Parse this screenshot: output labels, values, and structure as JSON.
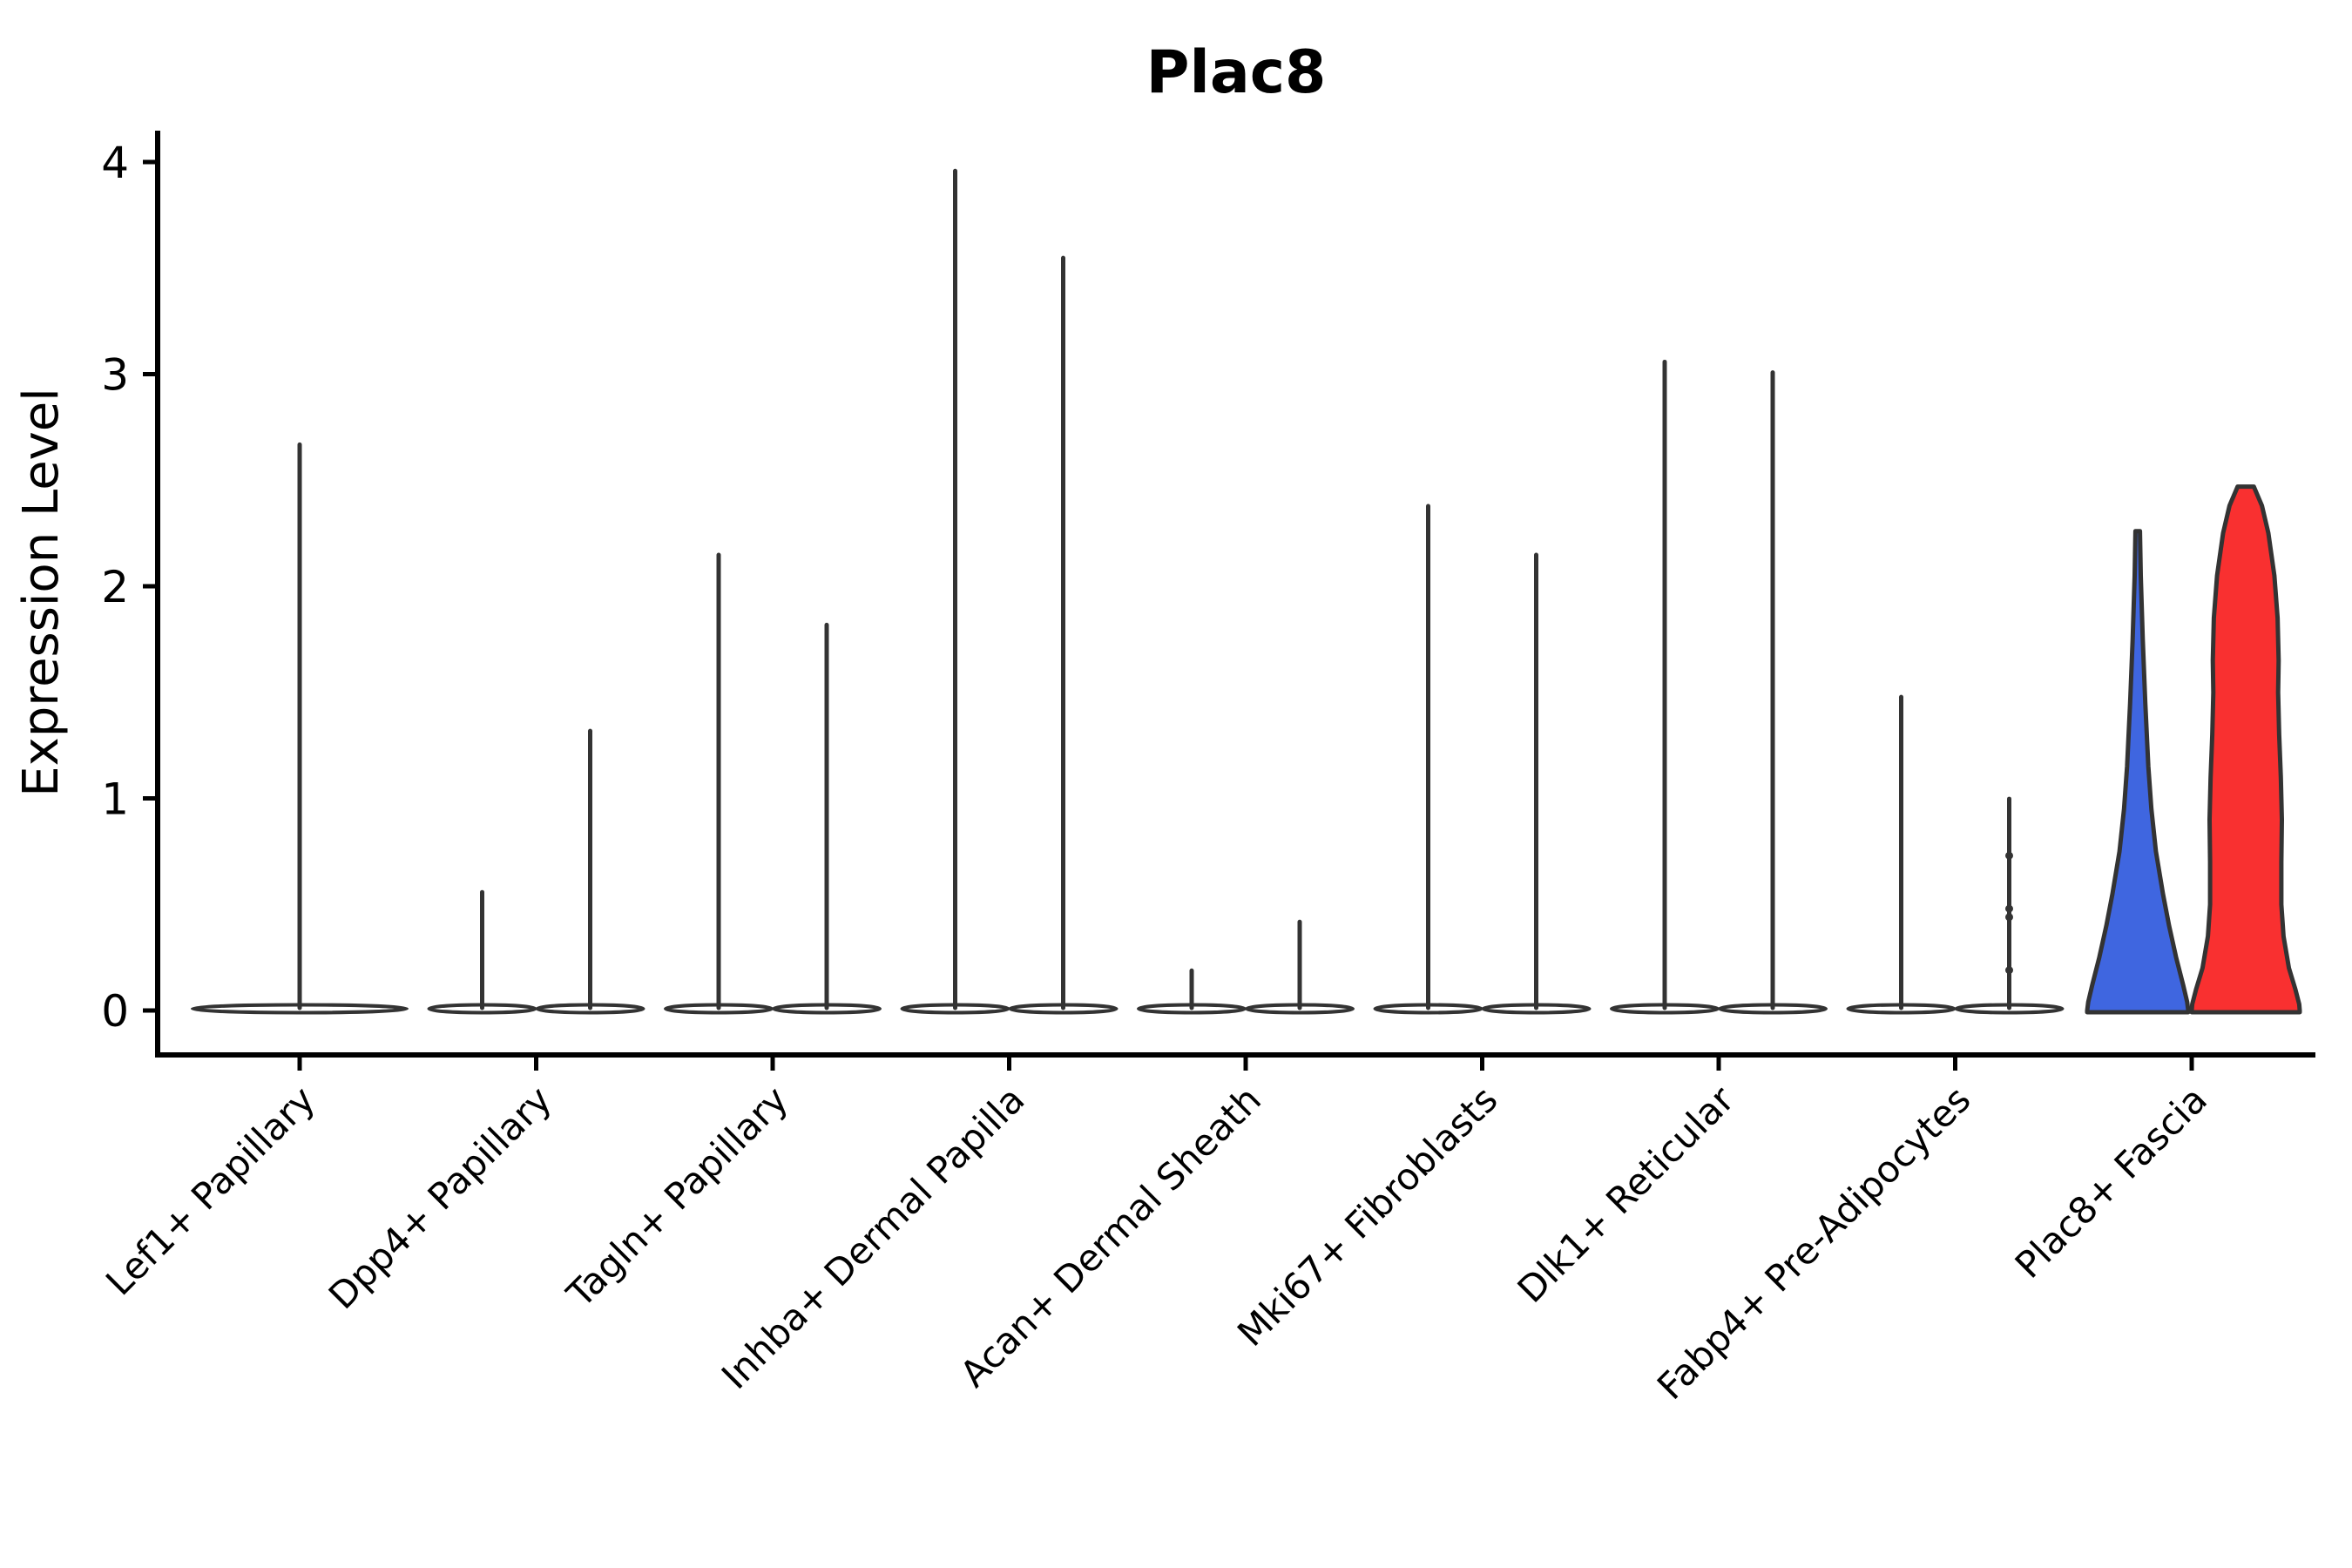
{
  "figure": {
    "title": "Plac8",
    "y_axis": {
      "label": "Expression Level",
      "tick_labels": [
        "0",
        "1",
        "2",
        "3",
        "4"
      ]
    },
    "colors": {
      "axis": "#000000",
      "outline": "#333333",
      "spike_fill": "#FFFFFF",
      "blue": "#3F66E0",
      "red": "#F93030",
      "background": "#FFFFFF"
    }
  },
  "chart_data": {
    "type": "violin",
    "title": "Plac8",
    "ylabel": "Expression Level",
    "ylim": [
      0,
      4.15
    ],
    "yticks": [
      0,
      1,
      2,
      3,
      4
    ],
    "grid": false,
    "legend_position": "none",
    "categories": [
      "Lef1+ Papillary",
      "Dpp4+ Papillary",
      "Tagln+ Papillary",
      "Inhba+ Dermal Papilla",
      "Acan+ Dermal Sheath",
      "Mki67+ Fibroblasts",
      "Dlk1+ Reticular",
      "Fabp4+ Pre-Adipocytes",
      "Plac8+ Fascia"
    ],
    "groups_per_category": 2,
    "violins": [
      {
        "category": "Lef1+ Papillary",
        "category_index": 0,
        "slot": "center",
        "style": "spike",
        "max_expression": 2.68,
        "fill": "#FFFFFF"
      },
      {
        "category": "Dpp4+ Papillary",
        "category_index": 1,
        "slot": "left",
        "style": "spike",
        "max_expression": 0.57,
        "fill": "#FFFFFF"
      },
      {
        "category": "Dpp4+ Papillary",
        "category_index": 1,
        "slot": "right",
        "style": "spike",
        "max_expression": 1.33,
        "fill": "#FFFFFF"
      },
      {
        "category": "Tagln+ Papillary",
        "category_index": 2,
        "slot": "left",
        "style": "spike",
        "max_expression": 2.16,
        "fill": "#FFFFFF"
      },
      {
        "category": "Tagln+ Papillary",
        "category_index": 2,
        "slot": "right",
        "style": "spike",
        "max_expression": 1.83,
        "fill": "#FFFFFF"
      },
      {
        "category": "Inhba+ Dermal Papilla",
        "category_index": 3,
        "slot": "left",
        "style": "spike",
        "max_expression": 3.97,
        "fill": "#FFFFFF"
      },
      {
        "category": "Inhba+ Dermal Papilla",
        "category_index": 3,
        "slot": "right",
        "style": "spike",
        "max_expression": 3.56,
        "fill": "#FFFFFF"
      },
      {
        "category": "Acan+ Dermal Sheath",
        "category_index": 4,
        "slot": "left",
        "style": "spike",
        "max_expression": 0.2,
        "fill": "#FFFFFF"
      },
      {
        "category": "Acan+ Dermal Sheath",
        "category_index": 4,
        "slot": "right",
        "style": "spike",
        "max_expression": 0.43,
        "fill": "#FFFFFF"
      },
      {
        "category": "Mki67+ Fibroblasts",
        "category_index": 5,
        "slot": "left",
        "style": "spike",
        "max_expression": 2.39,
        "fill": "#FFFFFF"
      },
      {
        "category": "Mki67+ Fibroblasts",
        "category_index": 5,
        "slot": "right",
        "style": "spike",
        "max_expression": 2.16,
        "fill": "#FFFFFF"
      },
      {
        "category": "Dlk1+ Reticular",
        "category_index": 6,
        "slot": "left",
        "style": "spike",
        "max_expression": 3.07,
        "fill": "#FFFFFF"
      },
      {
        "category": "Dlk1+ Reticular",
        "category_index": 6,
        "slot": "right",
        "style": "spike",
        "max_expression": 3.02,
        "fill": "#FFFFFF"
      },
      {
        "category": "Fabp4+ Pre-Adipocytes",
        "category_index": 7,
        "slot": "left",
        "style": "spike",
        "max_expression": 1.49,
        "fill": "#FFFFFF"
      },
      {
        "category": "Fabp4+ Pre-Adipocytes",
        "category_index": 7,
        "slot": "right",
        "style": "spike",
        "max_expression": 1.01,
        "fill": "#FFFFFF",
        "point_values": [
          0.73,
          0.48,
          0.44,
          0.19
        ]
      },
      {
        "category": "Plac8+ Fascia",
        "category_index": 8,
        "slot": "left",
        "style": "violin",
        "max_expression": 2.26,
        "fill": "#3F66E0",
        "profile": [
          [
            2.26,
            0.045
          ],
          [
            2.05,
            0.06
          ],
          [
            1.75,
            0.1
          ],
          [
            1.45,
            0.15
          ],
          [
            1.15,
            0.21
          ],
          [
            0.95,
            0.27
          ],
          [
            0.75,
            0.36
          ],
          [
            0.55,
            0.5
          ],
          [
            0.4,
            0.62
          ],
          [
            0.25,
            0.76
          ],
          [
            0.12,
            0.9
          ],
          [
            0.04,
            0.98
          ],
          [
            0.0,
            1.0
          ]
        ]
      },
      {
        "category": "Plac8+ Fascia",
        "category_index": 8,
        "slot": "right",
        "style": "violin",
        "max_expression": 2.47,
        "fill": "#F93030",
        "profile": [
          [
            2.47,
            0.15
          ],
          [
            2.38,
            0.3
          ],
          [
            2.25,
            0.42
          ],
          [
            2.05,
            0.53
          ],
          [
            1.85,
            0.59
          ],
          [
            1.65,
            0.61
          ],
          [
            1.5,
            0.6
          ],
          [
            1.3,
            0.62
          ],
          [
            1.1,
            0.65
          ],
          [
            0.9,
            0.67
          ],
          [
            0.7,
            0.66
          ],
          [
            0.5,
            0.66
          ],
          [
            0.35,
            0.7
          ],
          [
            0.2,
            0.8
          ],
          [
            0.1,
            0.92
          ],
          [
            0.03,
            0.99
          ],
          [
            0.0,
            1.0
          ]
        ]
      }
    ]
  }
}
